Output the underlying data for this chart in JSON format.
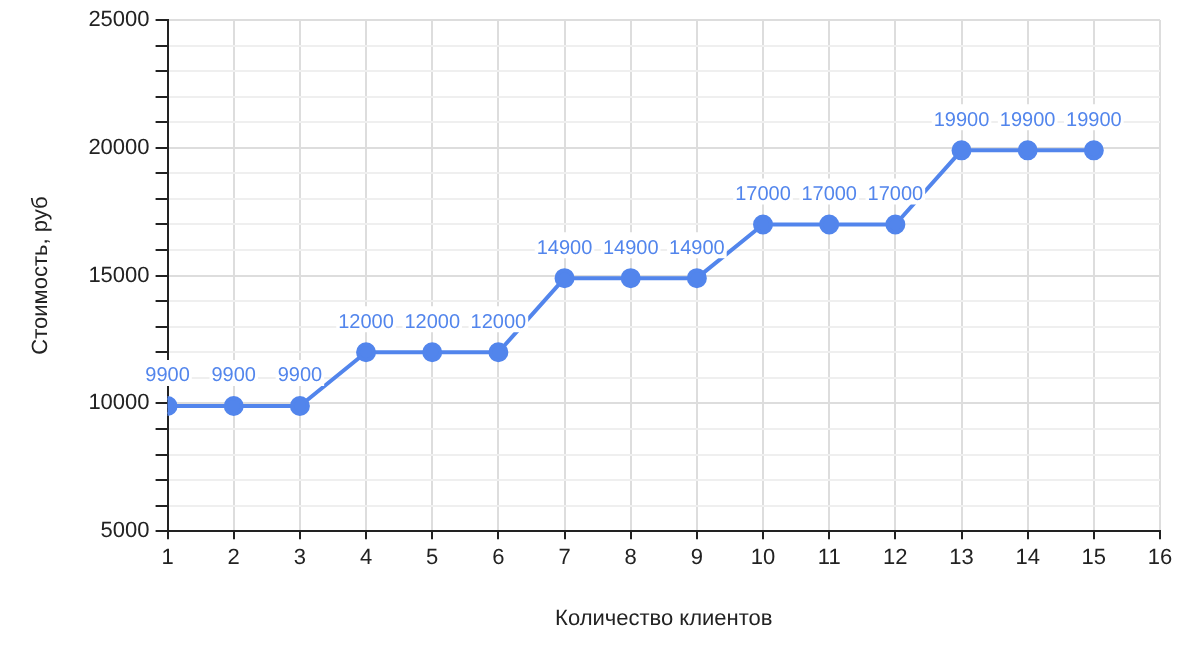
{
  "chart_data": {
    "type": "line",
    "xlabel": "Количество клиентов",
    "ylabel": "Стоимость, руб",
    "x": [
      1,
      2,
      3,
      4,
      5,
      6,
      7,
      8,
      9,
      10,
      11,
      12,
      13,
      14,
      15
    ],
    "series": [
      {
        "color": "#5285ec",
        "values": [
          9900,
          9900,
          9900,
          12000,
          12000,
          12000,
          14900,
          14900,
          14900,
          17000,
          17000,
          17000,
          19900,
          19900,
          19900
        ]
      }
    ],
    "xlim": [
      1,
      16
    ],
    "xticks": [
      1,
      2,
      3,
      4,
      5,
      6,
      7,
      8,
      9,
      10,
      11,
      12,
      13,
      14,
      15,
      16
    ],
    "ylim": [
      5000,
      25000
    ],
    "yticks": [
      5000,
      {
        "value": 6000,
        "label": null
      },
      {
        "value": 7000,
        "label": null
      },
      {
        "value": 8000,
        "label": null
      },
      {
        "value": 9000,
        "label": null
      },
      10000,
      {
        "value": 11000,
        "label": null
      },
      {
        "value": 12000,
        "label": null
      },
      {
        "value": 13000,
        "label": null
      },
      {
        "value": 14000,
        "label": null
      },
      15000,
      {
        "value": 16000,
        "label": null
      },
      {
        "value": 17000,
        "label": null
      },
      {
        "value": 18000,
        "label": null
      },
      {
        "value": 19000,
        "label": null
      },
      20000,
      {
        "value": 21000,
        "label": null
      },
      {
        "value": 22000,
        "label": null
      },
      {
        "value": 23000,
        "label": null
      },
      {
        "value": 24000,
        "label": null
      },
      25000
    ],
    "grid": true,
    "marker": "circle",
    "line_style": "solid",
    "data_labels": true
  }
}
